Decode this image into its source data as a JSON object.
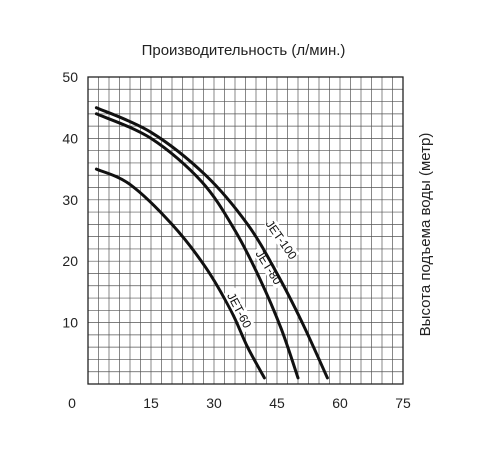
{
  "chart_data": {
    "type": "line",
    "title": "Производительность (л/мин.)",
    "xlabel": "",
    "ylabel": "Высота подъема воды (метр)",
    "xlim": [
      0,
      75
    ],
    "ylim": [
      0,
      50
    ],
    "x_ticks": [
      "0",
      "15",
      "30",
      "45",
      "60",
      "75"
    ],
    "y_ticks": [
      "10",
      "20",
      "30",
      "40",
      "50"
    ],
    "grid": true,
    "grid_minor_x": 2.5,
    "grid_minor_y": 2,
    "series": [
      {
        "name": "JET-60",
        "x": [
          2,
          10,
          20,
          28,
          34,
          38,
          42
        ],
        "y": [
          35,
          32.5,
          26,
          19,
          12,
          6,
          1
        ]
      },
      {
        "name": "JET-80",
        "x": [
          2,
          15,
          27,
          35,
          41,
          46,
          50
        ],
        "y": [
          44,
          40,
          33,
          25,
          17,
          9,
          1
        ]
      },
      {
        "name": "JET-100",
        "x": [
          2,
          15,
          28,
          38,
          45,
          51,
          57
        ],
        "y": [
          45,
          41,
          34,
          26,
          18,
          10,
          1
        ]
      }
    ]
  }
}
